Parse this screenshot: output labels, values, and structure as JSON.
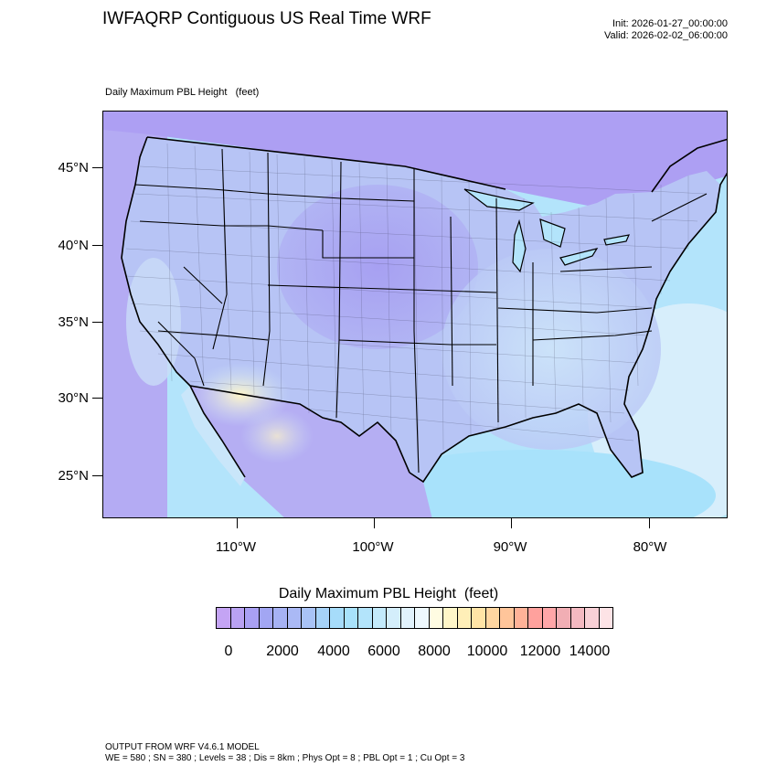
{
  "header": {
    "title": "IWFAQRP Contiguous US Real Time WRF",
    "init": "Init: 2026-01-27_00:00:00",
    "valid": "Valid: 2026-02-02_06:00:00"
  },
  "plot": {
    "subtitle": "Daily Maximum PBL Height   (feet)",
    "lat_labels": [
      "45°N",
      "40°N",
      "35°N",
      "30°N",
      "25°N"
    ],
    "lon_labels": [
      "110°W",
      "100°W",
      "90°W",
      "80°W"
    ],
    "colors": {
      "ocean": "#b3e4fb",
      "land_low": "#a9a0f3",
      "land_mid": "#b7c4f5",
      "land_high": "#cfe8fa",
      "desert_peak": "#fff6c8",
      "boundary": "#000000"
    }
  },
  "colorbar": {
    "title": "Daily Maximum PBL Height  (feet)",
    "labels": [
      "0",
      "2000",
      "4000",
      "6000",
      "8000",
      "10000",
      "12000",
      "14000"
    ],
    "colors": [
      "#c4a4f4",
      "#b9a2f2",
      "#a9a0f3",
      "#a2a6f3",
      "#a6b2f4",
      "#aab9f5",
      "#a9c3f6",
      "#a6d2f8",
      "#a6dcfa",
      "#a8e2fb",
      "#b3e4fb",
      "#c3eafb",
      "#d4eefb",
      "#e1f2fc",
      "#eef8fd",
      "#fffce2",
      "#fff6c8",
      "#ffefb8",
      "#ffe4a6",
      "#ffd6a0",
      "#ffc59a",
      "#ffb298",
      "#ffa19d",
      "#ffa6a8",
      "#f1aeb4",
      "#f4b9c1",
      "#f8d0d6",
      "#fde3e6"
    ]
  },
  "footer": {
    "line1": "OUTPUT FROM WRF V4.6.1 MODEL",
    "line2": "WE = 580 ; SN = 380 ; Levels = 38 ; Dis = 8km ; Phys Opt = 8 ; PBL Opt = 1 ; Cu Opt = 3"
  }
}
